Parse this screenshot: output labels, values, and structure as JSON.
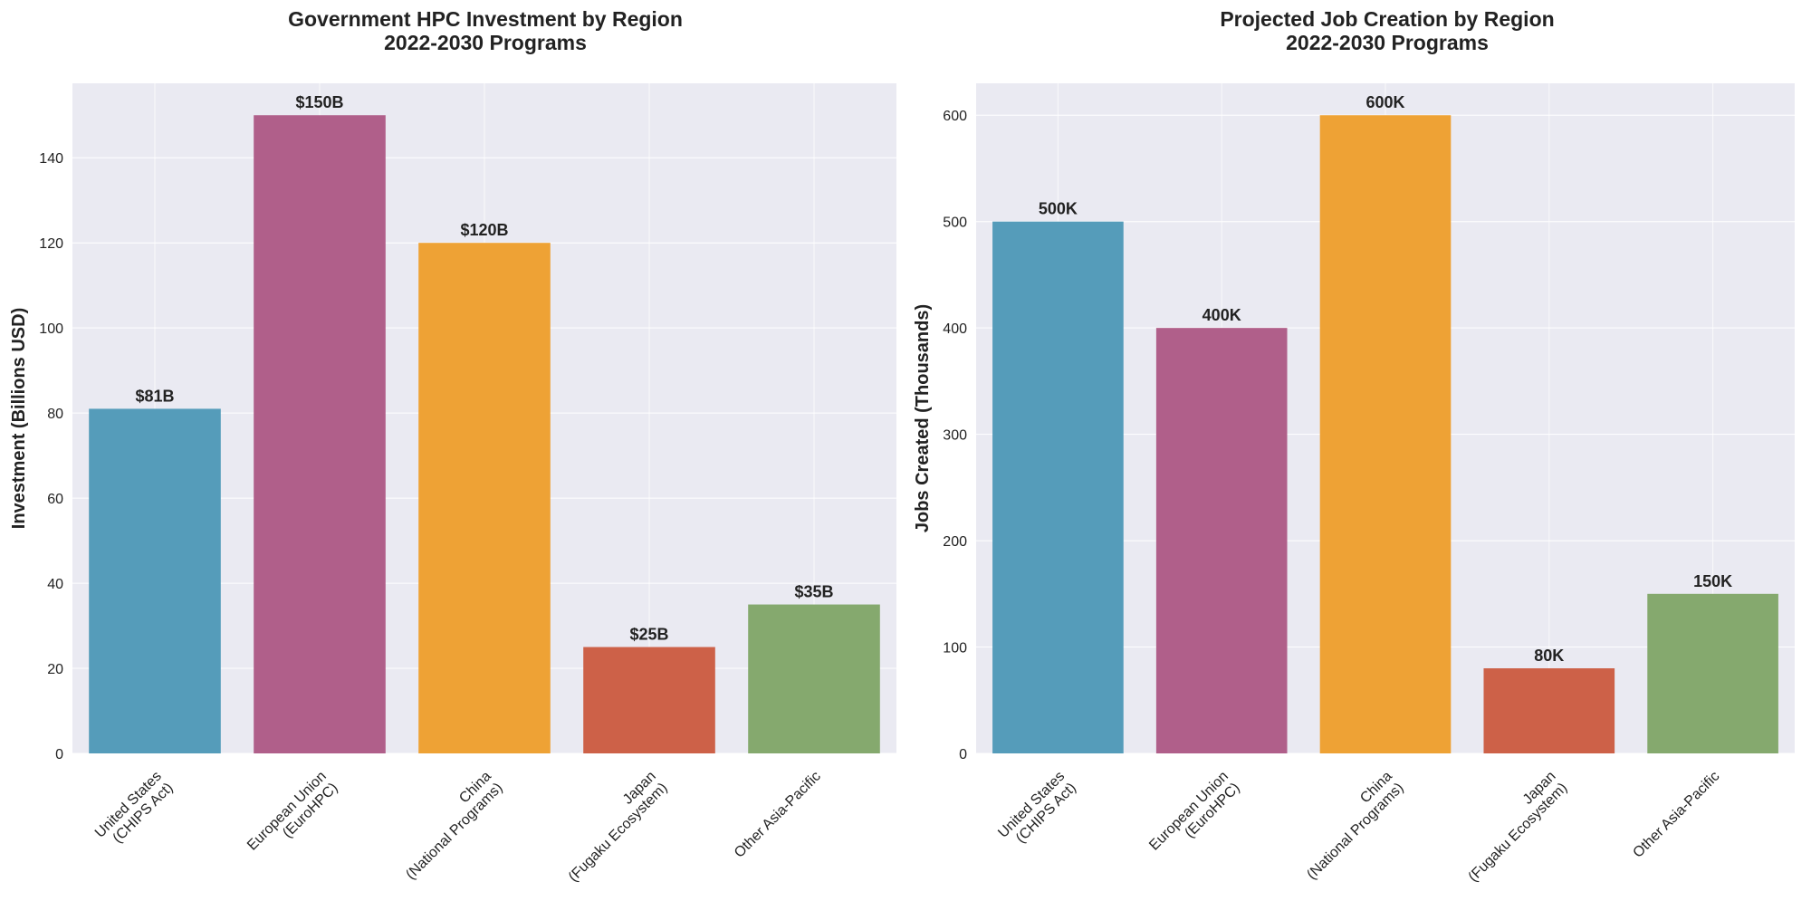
{
  "chart_data": [
    {
      "type": "bar",
      "title": "Government HPC Investment by Region\n2022-2030 Programs",
      "ylabel": "Investment (Billions USD)",
      "categories": [
        "United States\n(CHIPS Act)",
        "European Union\n(EuroHPC)",
        "China\n(National Programs)",
        "Japan\n(Fugaku Ecosystem)",
        "Other Asia-Pacific"
      ],
      "values": [
        81,
        150,
        120,
        25,
        35
      ],
      "value_labels": [
        "$81B",
        "$150B",
        "$120B",
        "$25B",
        "$35B"
      ],
      "colors": [
        "#559cba",
        "#b05f8a",
        "#eea235",
        "#cd6148",
        "#85a96e"
      ],
      "ylim": [
        0,
        157.5
      ],
      "yticks": [
        0,
        20,
        40,
        60,
        80,
        100,
        120,
        140
      ],
      "grid": true
    },
    {
      "type": "bar",
      "title": "Projected Job Creation by Region\n2022-2030 Programs",
      "ylabel": "Jobs Created (Thousands)",
      "categories": [
        "United States\n(CHIPS Act)",
        "European Union\n(EuroHPC)",
        "China\n(National Programs)",
        "Japan\n(Fugaku Ecosystem)",
        "Other Asia-Pacific"
      ],
      "values": [
        500,
        400,
        600,
        80,
        150
      ],
      "value_labels": [
        "500K",
        "400K",
        "600K",
        "80K",
        "150K"
      ],
      "colors": [
        "#559cba",
        "#b05f8a",
        "#eea235",
        "#cd6148",
        "#85a96e"
      ],
      "ylim": [
        0,
        630
      ],
      "yticks": [
        0,
        100,
        200,
        300,
        400,
        500,
        600
      ],
      "grid": true
    }
  ]
}
